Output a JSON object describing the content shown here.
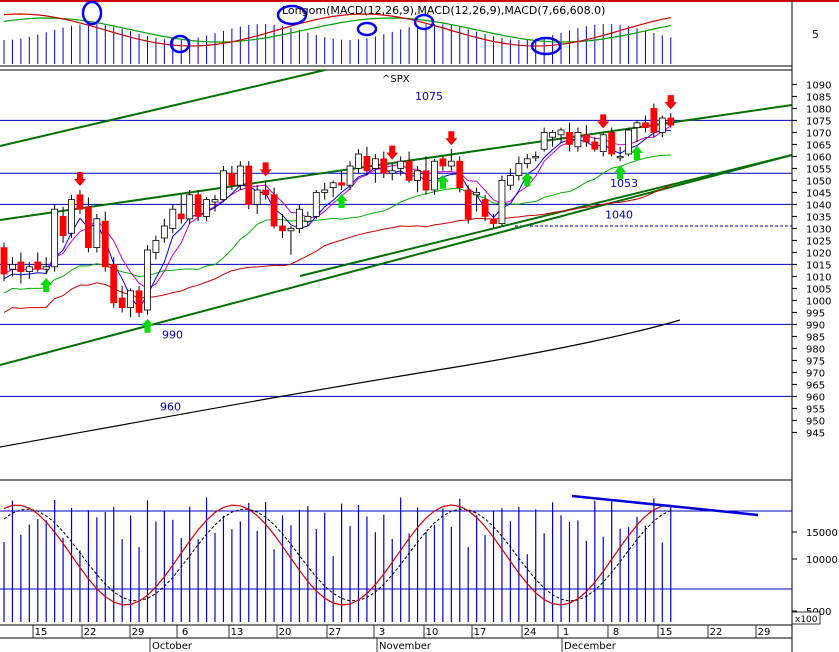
{
  "chart_data": {
    "type": "candlestick",
    "symbol": "^SPX",
    "top_indicator_label": "Longom(MACD(12,26,9),MACD(12,26,9),MACD(7,66,608.0)",
    "top_right_tick": "5",
    "price_axis": {
      "ylim": [
        940,
        1093
      ],
      "ticks": [
        945,
        950,
        955,
        960,
        965,
        970,
        975,
        980,
        985,
        990,
        995,
        1000,
        1005,
        1010,
        1015,
        1020,
        1025,
        1030,
        1035,
        1040,
        1045,
        1050,
        1055,
        1060,
        1065,
        1070,
        1075,
        1080,
        1085,
        1090
      ]
    },
    "lower_axis": {
      "ticks": [
        "15000",
        "10000",
        "5000"
      ],
      "multiplier": "x100"
    },
    "x_axis": {
      "day_ticks": [
        "15",
        "22",
        "29",
        "6",
        "13",
        "20",
        "27",
        "3",
        "10",
        "17",
        "24",
        "1",
        "8",
        "15",
        "22",
        "29"
      ],
      "month_labels": [
        "October",
        "November",
        "December"
      ]
    },
    "horizontal_levels": [
      {
        "value": 1075,
        "label": "1075",
        "style": "solid"
      },
      {
        "value": 1053,
        "label": "1053",
        "style": "solid"
      },
      {
        "value": 1040,
        "label": "1040",
        "style": "solid"
      },
      {
        "value": 1031,
        "label": "",
        "style": "dashed"
      },
      {
        "value": 1015,
        "label": "",
        "style": "solid"
      },
      {
        "value": 990,
        "label": "990",
        "style": "solid"
      },
      {
        "value": 960,
        "label": "960",
        "style": "solid"
      }
    ],
    "candles": [
      {
        "o": 1022,
        "h": 1024,
        "l": 1008,
        "c": 1011
      },
      {
        "o": 1013,
        "h": 1018,
        "l": 1010,
        "c": 1015
      },
      {
        "o": 1016,
        "h": 1020,
        "l": 1007,
        "c": 1012
      },
      {
        "o": 1012,
        "h": 1016,
        "l": 1009,
        "c": 1014
      },
      {
        "o": 1016,
        "h": 1020,
        "l": 1012,
        "c": 1013
      },
      {
        "o": 1013,
        "h": 1018,
        "l": 1011,
        "c": 1014
      },
      {
        "o": 1014,
        "h": 1040,
        "l": 1012,
        "c": 1038
      },
      {
        "o": 1035,
        "h": 1039,
        "l": 1024,
        "c": 1027
      },
      {
        "o": 1028,
        "h": 1044,
        "l": 1026,
        "c": 1042
      },
      {
        "o": 1044,
        "h": 1046,
        "l": 1036,
        "c": 1038
      },
      {
        "o": 1039,
        "h": 1043,
        "l": 1020,
        "c": 1022
      },
      {
        "o": 1022,
        "h": 1036,
        "l": 1020,
        "c": 1034
      },
      {
        "o": 1033,
        "h": 1037,
        "l": 1012,
        "c": 1014
      },
      {
        "o": 1015,
        "h": 1018,
        "l": 997,
        "c": 999
      },
      {
        "o": 1001,
        "h": 1006,
        "l": 995,
        "c": 997
      },
      {
        "o": 997,
        "h": 1005,
        "l": 993,
        "c": 1004
      },
      {
        "o": 1004,
        "h": 1006,
        "l": 993,
        "c": 995
      },
      {
        "o": 996,
        "h": 1023,
        "l": 994,
        "c": 1021
      },
      {
        "o": 1020,
        "h": 1027,
        "l": 1017,
        "c": 1025
      },
      {
        "o": 1026,
        "h": 1034,
        "l": 1024,
        "c": 1031
      },
      {
        "o": 1030,
        "h": 1040,
        "l": 1028,
        "c": 1038
      },
      {
        "o": 1036,
        "h": 1044,
        "l": 1032,
        "c": 1034
      },
      {
        "o": 1034,
        "h": 1046,
        "l": 1032,
        "c": 1044
      },
      {
        "o": 1044,
        "h": 1046,
        "l": 1033,
        "c": 1035
      },
      {
        "o": 1035,
        "h": 1043,
        "l": 1033,
        "c": 1042
      },
      {
        "o": 1041,
        "h": 1044,
        "l": 1037,
        "c": 1042
      },
      {
        "o": 1042,
        "h": 1056,
        "l": 1041,
        "c": 1054
      },
      {
        "o": 1053,
        "h": 1056,
        "l": 1046,
        "c": 1048
      },
      {
        "o": 1048,
        "h": 1058,
        "l": 1046,
        "c": 1056
      },
      {
        "o": 1056,
        "h": 1058,
        "l": 1038,
        "c": 1040
      },
      {
        "o": 1040,
        "h": 1048,
        "l": 1036,
        "c": 1046
      },
      {
        "o": 1046,
        "h": 1050,
        "l": 1042,
        "c": 1044
      },
      {
        "o": 1044,
        "h": 1047,
        "l": 1030,
        "c": 1031
      },
      {
        "o": 1031,
        "h": 1036,
        "l": 1026,
        "c": 1029
      },
      {
        "o": 1029,
        "h": 1031,
        "l": 1019,
        "c": 1030
      },
      {
        "o": 1030,
        "h": 1040,
        "l": 1028,
        "c": 1038
      },
      {
        "o": 1033,
        "h": 1037,
        "l": 1031,
        "c": 1035
      },
      {
        "o": 1035,
        "h": 1046,
        "l": 1034,
        "c": 1045
      },
      {
        "o": 1045,
        "h": 1049,
        "l": 1042,
        "c": 1046
      },
      {
        "o": 1047,
        "h": 1050,
        "l": 1043,
        "c": 1049
      },
      {
        "o": 1049,
        "h": 1054,
        "l": 1046,
        "c": 1048
      },
      {
        "o": 1048,
        "h": 1058,
        "l": 1046,
        "c": 1056
      },
      {
        "o": 1055,
        "h": 1063,
        "l": 1053,
        "c": 1061
      },
      {
        "o": 1060,
        "h": 1064,
        "l": 1052,
        "c": 1054
      },
      {
        "o": 1055,
        "h": 1061,
        "l": 1049,
        "c": 1059
      },
      {
        "o": 1059,
        "h": 1062,
        "l": 1051,
        "c": 1053
      },
      {
        "o": 1053,
        "h": 1057,
        "l": 1050,
        "c": 1054
      },
      {
        "o": 1055,
        "h": 1060,
        "l": 1052,
        "c": 1058
      },
      {
        "o": 1058,
        "h": 1062,
        "l": 1049,
        "c": 1050
      },
      {
        "o": 1050,
        "h": 1056,
        "l": 1045,
        "c": 1054
      },
      {
        "o": 1054,
        "h": 1060,
        "l": 1044,
        "c": 1046
      },
      {
        "o": 1046,
        "h": 1059,
        "l": 1044,
        "c": 1058
      },
      {
        "o": 1059,
        "h": 1060,
        "l": 1054,
        "c": 1056
      },
      {
        "o": 1056,
        "h": 1063,
        "l": 1054,
        "c": 1058
      },
      {
        "o": 1058,
        "h": 1060,
        "l": 1045,
        "c": 1047
      },
      {
        "o": 1046,
        "h": 1048,
        "l": 1032,
        "c": 1034
      },
      {
        "o": 1044,
        "h": 1047,
        "l": 1037,
        "c": 1045
      },
      {
        "o": 1042,
        "h": 1044,
        "l": 1033,
        "c": 1035
      },
      {
        "o": 1034,
        "h": 1036,
        "l": 1030,
        "c": 1032
      },
      {
        "o": 1032,
        "h": 1052,
        "l": 1031,
        "c": 1050
      },
      {
        "o": 1048,
        "h": 1055,
        "l": 1046,
        "c": 1052
      },
      {
        "o": 1052,
        "h": 1060,
        "l": 1050,
        "c": 1057
      },
      {
        "o": 1057,
        "h": 1061,
        "l": 1055,
        "c": 1059
      },
      {
        "o": 1060,
        "h": 1062,
        "l": 1058,
        "c": 1060
      },
      {
        "o": 1063,
        "h": 1072,
        "l": 1062,
        "c": 1070
      },
      {
        "o": 1068,
        "h": 1071,
        "l": 1064,
        "c": 1070
      },
      {
        "o": 1069,
        "h": 1072,
        "l": 1066,
        "c": 1071
      },
      {
        "o": 1070,
        "h": 1074,
        "l": 1062,
        "c": 1065
      },
      {
        "o": 1064,
        "h": 1072,
        "l": 1062,
        "c": 1070
      },
      {
        "o": 1069,
        "h": 1073,
        "l": 1064,
        "c": 1066
      },
      {
        "o": 1066,
        "h": 1068,
        "l": 1062,
        "c": 1063
      },
      {
        "o": 1062,
        "h": 1070,
        "l": 1060,
        "c": 1069
      },
      {
        "o": 1070,
        "h": 1072,
        "l": 1060,
        "c": 1061
      },
      {
        "o": 1060,
        "h": 1064,
        "l": 1058,
        "c": 1060
      },
      {
        "o": 1061,
        "h": 1072,
        "l": 1060,
        "c": 1071
      },
      {
        "o": 1072,
        "h": 1075,
        "l": 1066,
        "c": 1074
      },
      {
        "o": 1074,
        "h": 1077,
        "l": 1070,
        "c": 1072
      },
      {
        "o": 1080,
        "h": 1082,
        "l": 1068,
        "c": 1070
      },
      {
        "o": 1070,
        "h": 1077,
        "l": 1068,
        "c": 1076
      },
      {
        "o": 1076,
        "h": 1078,
        "l": 1072,
        "c": 1073
      }
    ],
    "down_arrows": [
      10,
      36,
      53,
      60,
      72,
      76,
      80
    ],
    "up_arrows": [
      7,
      22,
      48,
      67,
      74,
      91,
      102
    ],
    "colors": {
      "up_candle": "#ffffff",
      "down_candle": "#ff0000",
      "level_line": "#0000c0",
      "channel": "#007000",
      "ma_fast": "#0000ff",
      "ma_mid": "#cc00cc",
      "ma_green": "#00b000",
      "ma_red": "#cc0000",
      "ma_long": "#000000",
      "arrow_down": "#ff0000",
      "arrow_up": "#00dd00",
      "circle": "#0000ff"
    }
  }
}
